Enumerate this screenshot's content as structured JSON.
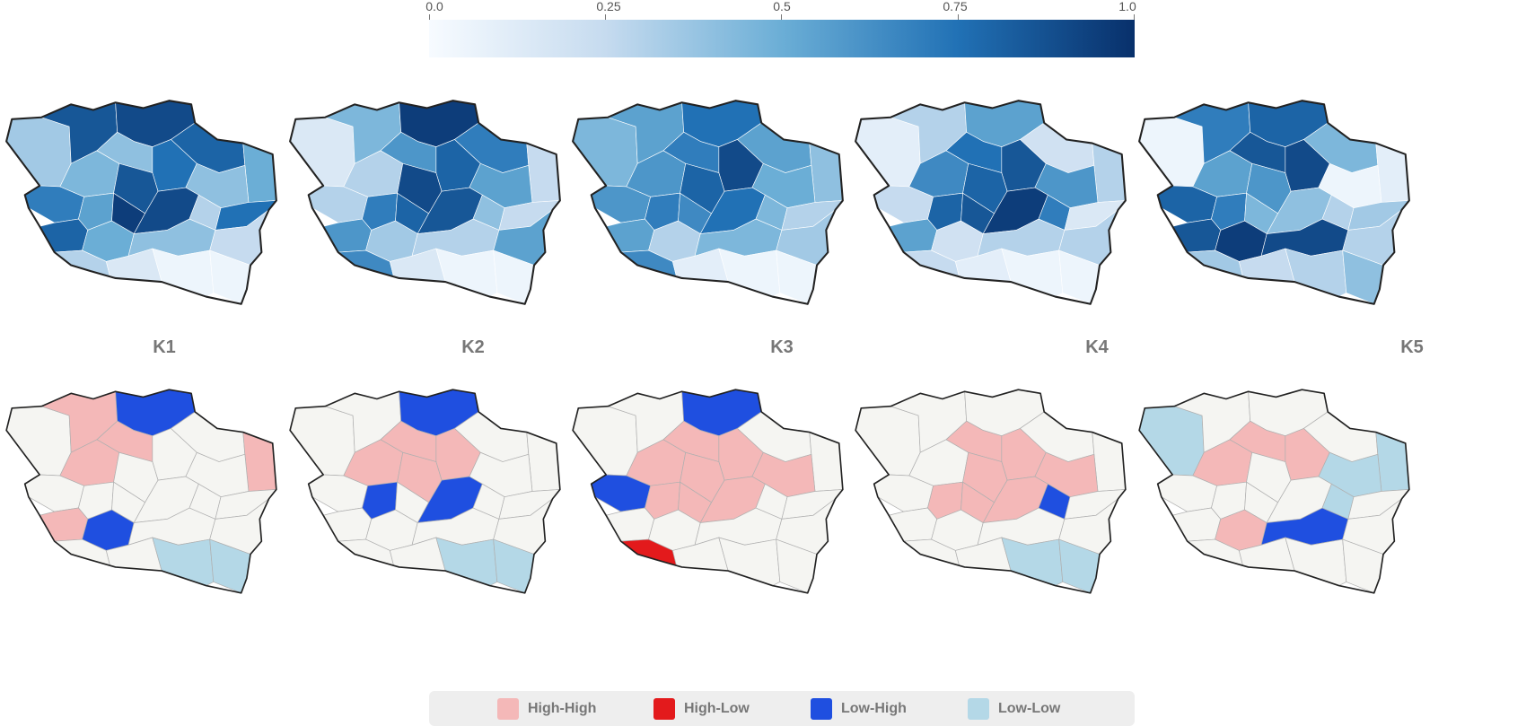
{
  "colorbar": {
    "ticks": [
      "0.0",
      "0.25",
      "0.5",
      "0.75",
      "1.0"
    ],
    "tick_values": [
      0,
      0.25,
      0.5,
      0.75,
      1.0
    ],
    "colors": [
      "#f7fbff",
      "#c6dbef",
      "#6baed6",
      "#2171b5",
      "#08306b"
    ]
  },
  "panels": [
    {
      "label": "K1",
      "values": [
        0.35,
        0.85,
        0.45,
        0.9,
        0.8,
        0.5,
        0.4,
        0.75,
        0.85,
        0.4,
        0.7,
        0.55,
        0.95,
        0.9,
        0.3,
        0.75,
        0.8,
        0.5,
        0.4,
        0.25,
        0.3,
        0.15,
        0.05,
        0.05
      ],
      "lisa": [
        "none",
        "high-high",
        "high-high",
        "low-high",
        "none",
        "high-high",
        "high-high",
        "none",
        "none",
        "none",
        "none",
        "none",
        "none",
        "none",
        "none",
        "none",
        "high-high",
        "low-high",
        "none",
        "none",
        "none",
        "none",
        "low-low",
        "low-low"
      ]
    },
    {
      "label": "K2",
      "values": [
        0.15,
        0.45,
        0.3,
        0.95,
        0.7,
        0.25,
        0.6,
        0.8,
        0.9,
        0.55,
        0.3,
        0.7,
        0.8,
        0.85,
        0.4,
        0.25,
        0.6,
        0.35,
        0.3,
        0.55,
        0.65,
        0.15,
        0.05,
        0.05
      ],
      "lisa": [
        "none",
        "none",
        "high-high",
        "low-high",
        "none",
        "none",
        "high-high",
        "high-high",
        "high-high",
        "none",
        "none",
        "low-high",
        "none",
        "low-high",
        "none",
        "none",
        "none",
        "none",
        "none",
        "none",
        "none",
        "none",
        "low-low",
        "low-low"
      ]
    },
    {
      "label": "K3",
      "values": [
        0.45,
        0.55,
        0.6,
        0.75,
        0.55,
        0.4,
        0.7,
        0.9,
        0.8,
        0.5,
        0.6,
        0.7,
        0.65,
        0.75,
        0.45,
        0.3,
        0.55,
        0.3,
        0.45,
        0.35,
        0.65,
        0.1,
        0.05,
        0.05
      ],
      "lisa": [
        "none",
        "none",
        "high-high",
        "low-high",
        "none",
        "none",
        "high-high",
        "high-high",
        "high-high",
        "high-high",
        "low-high",
        "high-high",
        "high-high",
        "high-high",
        "none",
        "none",
        "none",
        "none",
        "none",
        "none",
        "high-low",
        "none",
        "none",
        "none"
      ]
    },
    {
      "label": "K4",
      "values": [
        0.1,
        0.3,
        0.65,
        0.55,
        0.2,
        0.3,
        0.75,
        0.85,
        0.8,
        0.6,
        0.25,
        0.8,
        0.85,
        0.95,
        0.7,
        0.15,
        0.55,
        0.2,
        0.3,
        0.3,
        0.25,
        0.1,
        0.05,
        0.05
      ],
      "lisa": [
        "none",
        "none",
        "none",
        "none",
        "none",
        "none",
        "high-high",
        "high-high",
        "high-high",
        "high-high",
        "none",
        "high-high",
        "high-high",
        "high-high",
        "low-high",
        "none",
        "none",
        "none",
        "none",
        "none",
        "none",
        "none",
        "low-low",
        "low-low"
      ]
    },
    {
      "label": "K5",
      "values": [
        0.05,
        0.7,
        0.55,
        0.8,
        0.45,
        0.1,
        0.85,
        0.9,
        0.6,
        0.05,
        0.8,
        0.7,
        0.45,
        0.4,
        0.3,
        0.35,
        0.85,
        0.95,
        0.9,
        0.3,
        0.35,
        0.25,
        0.3,
        0.4
      ],
      "lisa": [
        "low-low",
        "none",
        "high-high",
        "none",
        "none",
        "low-low",
        "high-high",
        "high-high",
        "none",
        "low-low",
        "none",
        "none",
        "none",
        "none",
        "low-low",
        "none",
        "none",
        "high-high",
        "low-high",
        "none",
        "none",
        "none",
        "none",
        "none"
      ]
    }
  ],
  "legend": {
    "items": [
      {
        "key": "high-high",
        "label": "High-High",
        "color": "#f4b8b8"
      },
      {
        "key": "high-low",
        "label": "High-Low",
        "color": "#e31a1c"
      },
      {
        "key": "low-high",
        "label": "Low-High",
        "color": "#1f4fe0"
      },
      {
        "key": "low-low",
        "label": "Low-Low",
        "color": "#b4d8e7"
      }
    ]
  },
  "colors": {
    "no_significance": "#f5f5f2",
    "outline": "#222222",
    "inner_border": "#ffffff",
    "inner_border_lisa": "#b0b0b0"
  }
}
